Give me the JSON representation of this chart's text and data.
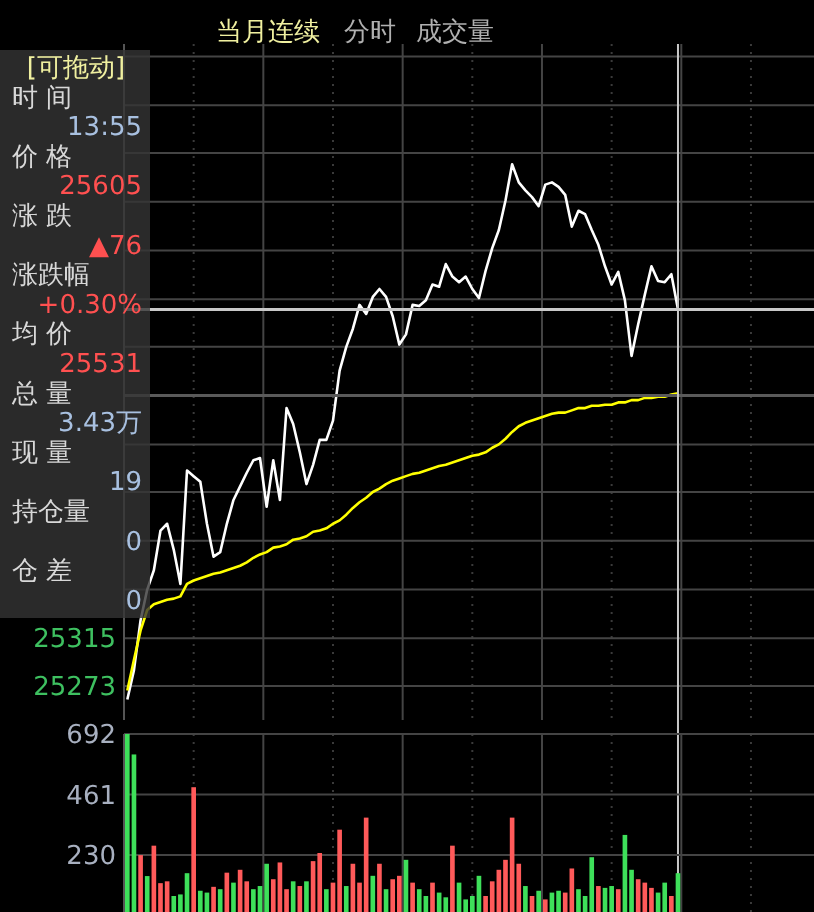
{
  "chart_data": [
    {
      "type": "line",
      "title": "当月连续",
      "annotations": [
        "分时",
        "成交量"
      ],
      "categories": [
        null,
        null,
        null,
        null,
        null,
        null,
        null,
        null,
        null,
        null,
        null,
        null,
        null,
        null,
        null,
        null,
        null,
        null,
        null,
        null,
        null,
        null,
        null,
        null,
        null,
        null,
        null,
        null,
        null,
        null,
        null,
        null,
        null,
        null,
        null,
        null,
        null,
        null,
        null,
        null,
        null,
        null,
        null,
        null,
        null,
        null,
        null,
        null,
        null,
        null,
        null,
        null,
        null,
        null,
        null,
        null,
        null,
        null,
        null,
        null,
        null,
        null,
        null,
        null,
        null,
        null,
        null,
        null,
        null,
        null,
        null,
        null,
        null,
        null,
        null,
        null,
        null,
        null,
        null,
        null,
        null,
        null,
        null,
        null,
        null,
        null,
        null,
        null,
        null,
        null,
        null,
        null,
        null,
        null,
        null,
        null,
        null,
        null,
        null,
        null,
        null,
        null,
        null,
        null
      ],
      "series": [
        {
          "color": "#ffffff",
          "values": [
            25261,
            25287,
            25331,
            25358,
            25375,
            25410,
            25416,
            25393,
            25363,
            25463,
            25458,
            25453,
            25416,
            25387,
            25391,
            25416,
            25437,
            25449,
            25461,
            25472,
            25474,
            25431,
            25472,
            25437,
            25518,
            25504,
            25479,
            25451,
            25468,
            25490,
            25490,
            25507,
            25551,
            25572,
            25588,
            25609,
            25601,
            25616,
            25623,
            25616,
            25599,
            25574,
            25583,
            25609,
            25608,
            25613,
            25627,
            25625,
            25645,
            25634,
            25629,
            25634,
            25623,
            25615,
            25639,
            25659,
            25675,
            25701,
            25733,
            25717,
            25710,
            25704,
            25696,
            25715,
            25717,
            25713,
            25706,
            25678,
            25692,
            25689,
            25675,
            25662,
            25643,
            25627,
            25638,
            25613,
            25564,
            25592,
            25618,
            25643,
            25630,
            25629,
            25636,
            25605,
            null,
            null,
            null,
            null,
            null,
            null,
            null,
            null,
            null,
            null,
            null,
            null,
            null,
            null,
            null,
            null,
            null,
            null,
            null,
            null
          ]
        },
        {
          "color": "#ffff00",
          "values": [
            25269,
            25296,
            25322,
            25340,
            25345,
            25347,
            25349,
            25350,
            25352,
            25363,
            25366,
            25368,
            25370,
            25372,
            25373,
            25375,
            25377,
            25379,
            25382,
            25386,
            25389,
            25391,
            25395,
            25396,
            25398,
            25402,
            25403,
            25405,
            25409,
            25410,
            25412,
            25416,
            25419,
            25424,
            25430,
            25435,
            25439,
            25444,
            25447,
            25451,
            25454,
            25456,
            25458,
            25460,
            25461,
            25463,
            25465,
            25467,
            25468,
            25470,
            25472,
            25474,
            25476,
            25477,
            25479,
            25483,
            25486,
            25491,
            25497,
            25502,
            25505,
            25507,
            25509,
            25511,
            25513,
            25514,
            25514,
            25516,
            25518,
            25518,
            25520,
            25520,
            25521,
            25521,
            25523,
            25523,
            25525,
            25525,
            25527,
            25527,
            25528,
            25528,
            25530,
            25531,
            null,
            null,
            null,
            null,
            null,
            null,
            null,
            null,
            null,
            null,
            null,
            null,
            null,
            null,
            null,
            null,
            null,
            null,
            null,
            null
          ]
        }
      ],
      "ylim": [
        25243,
        25839
      ],
      "yticks": [
        25273,
        25315,
        {
          "value": 25358,
          "label": null
        },
        {
          "value": 25401,
          "label": null
        },
        {
          "value": 25444,
          "label": null
        },
        {
          "value": 25486,
          "label": null
        },
        {
          "value": 25529,
          "label": null
        },
        {
          "value": 25572,
          "label": null
        },
        {
          "value": 25614,
          "label": null
        },
        {
          "value": 25657,
          "label": null
        },
        {
          "value": 25700,
          "label": null
        },
        {
          "value": 25743,
          "label": null
        },
        {
          "value": 25785,
          "label": null
        },
        {
          "value": 25828,
          "label": null
        }
      ],
      "grid": true,
      "ref_lines": [
        {
          "axis": "y",
          "value": 25605,
          "color": "#c8c8c8"
        },
        {
          "axis": "y",
          "value": 25529,
          "color": "#5a5a5a"
        }
      ]
    },
    {
      "type": "bar",
      "categories": [
        null,
        null,
        null,
        null,
        null,
        null,
        null,
        null,
        null,
        null,
        null,
        null,
        null,
        null,
        null,
        null,
        null,
        null,
        null,
        null,
        null,
        null,
        null,
        null,
        null,
        null,
        null,
        null,
        null,
        null,
        null,
        null,
        null,
        null,
        null,
        null,
        null,
        null,
        null,
        null,
        null,
        null,
        null,
        null,
        null,
        null,
        null,
        null,
        null,
        null,
        null,
        null,
        null,
        null,
        null,
        null,
        null,
        null,
        null,
        null,
        null,
        null,
        null,
        null,
        null,
        null,
        null,
        null,
        null,
        null,
        null,
        null,
        null,
        null,
        null,
        null,
        null,
        null,
        null,
        null,
        null,
        null,
        null,
        null,
        null,
        null,
        null,
        null,
        null,
        null,
        null,
        null,
        null,
        null,
        null,
        null,
        null,
        null,
        null,
        null,
        null,
        null,
        null,
        null
      ],
      "values": [
        692,
        614,
        230,
        150,
        266,
        123,
        130,
        74,
        80,
        161,
        489,
        94,
        87,
        109,
        100,
        163,
        125,
        174,
        130,
        100,
        112,
        197,
        138,
        202,
        100,
        130,
        112,
        130,
        207,
        238,
        100,
        125,
        327,
        112,
        197,
        125,
        373,
        151,
        197,
        100,
        138,
        151,
        212,
        125,
        100,
        74,
        125,
        87,
        69,
        266,
        125,
        61,
        74,
        151,
        74,
        130,
        174,
        212,
        373,
        197,
        112,
        74,
        94,
        61,
        87,
        94,
        87,
        179,
        100,
        74,
        222,
        112,
        105,
        112,
        100,
        307,
        174,
        138,
        125,
        105,
        87,
        125,
        74,
        161,
        null,
        null,
        null,
        null,
        null,
        null,
        null,
        null,
        null,
        null,
        null,
        null,
        null,
        null,
        null,
        null,
        null,
        null,
        null,
        null
      ],
      "colors": [
        "#3ee05a",
        "#3ee05a",
        "#ff5a5a",
        "#3ee05a",
        "#ff5a5a",
        "#ff5a5a",
        "#ff5a5a",
        "#3ee05a",
        "#3ee05a",
        "#3ee05a",
        "#ff5a5a",
        "#3ee05a",
        "#3ee05a",
        "#ff5a5a",
        "#3ee05a",
        "#ff5a5a",
        "#3ee05a",
        "#ff5a5a",
        "#ff5a5a",
        "#3ee05a",
        "#3ee05a",
        "#3ee05a",
        "#ff5a5a",
        "#ff5a5a",
        "#ff5a5a",
        "#3ee05a",
        "#ff5a5a",
        "#3ee05a",
        "#ff5a5a",
        "#ff5a5a",
        "#3ee05a",
        "#ff5a5a",
        "#ff5a5a",
        "#3ee05a",
        "#ff5a5a",
        "#ff5a5a",
        "#ff5a5a",
        "#3ee05a",
        "#ff5a5a",
        "#3ee05a",
        "#ff5a5a",
        "#ff5a5a",
        "#3ee05a",
        "#ff5a5a",
        "#3ee05a",
        "#3ee05a",
        "#ff5a5a",
        "#3ee05a",
        "#3ee05a",
        "#ff5a5a",
        "#3ee05a",
        "#3ee05a",
        "#3ee05a",
        "#3ee05a",
        "#ff5a5a",
        "#ff5a5a",
        "#ff5a5a",
        "#ff5a5a",
        "#ff5a5a",
        "#ff5a5a",
        "#3ee05a",
        "#ff5a5a",
        "#3ee05a",
        "#ff5a5a",
        "#3ee05a",
        "#3ee05a",
        "#ff5a5a",
        "#ff5a5a",
        "#3ee05a",
        "#3ee05a",
        "#3ee05a",
        "#ff5a5a",
        "#3ee05a",
        "#3ee05a",
        "#ff5a5a",
        "#3ee05a",
        "#3ee05a",
        "#ff5a5a",
        "#ff5a5a",
        "#ff5a5a",
        "#3ee05a",
        "#3ee05a",
        "#ff5a5a",
        "#3ee05a",
        null,
        null,
        null,
        null,
        null,
        null,
        null,
        null,
        null,
        null,
        null,
        null,
        null,
        null,
        null,
        null,
        null,
        null,
        null,
        null
      ],
      "ylim": [
        0,
        692
      ],
      "yticks": [
        230,
        461,
        692
      ],
      "grid": true
    },
    {
      "type": "other",
      "annotations": [
        "[可拖动]",
        "时 间",
        "13:55",
        "价 格",
        "25605",
        "涨 跌",
        "▲76",
        "涨跌幅",
        "+0.30%",
        "均 价",
        "25531",
        "总 量",
        "3.43万",
        "现 量",
        "19",
        "持仓量",
        "0",
        "仓 差",
        "0"
      ],
      "colors": [
        "#f0f0a0",
        "#d8d8d8",
        "#a8c0e0",
        "#d8d8d8",
        "#ff5050",
        "#d8d8d8",
        "#ff5050",
        "#d8d8d8",
        "#ff5050",
        "#d8d8d8",
        "#ff5050",
        "#d8d8d8",
        "#a8c0e0",
        "#d8d8d8",
        "#a8c0e0",
        "#d8d8d8",
        "#a8c0e0",
        "#d8d8d8",
        "#a8c0e0"
      ]
    }
  ]
}
